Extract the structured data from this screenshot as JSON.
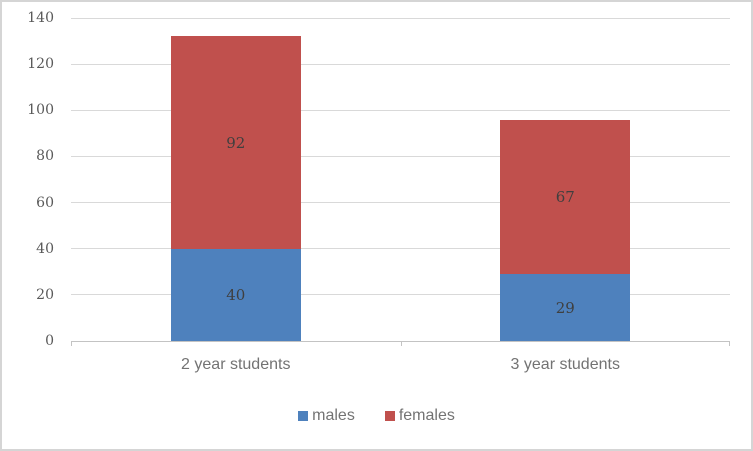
{
  "chart_data": {
    "type": "bar",
    "variant": "stacked-column",
    "title": "",
    "xlabel": "",
    "ylabel": "",
    "categories": [
      "2 year students",
      "3 year students"
    ],
    "series": [
      {
        "name": "males",
        "color": "#4e81bd",
        "values": [
          40,
          29
        ]
      },
      {
        "name": "females",
        "color": "#c0504d",
        "values": [
          92,
          67
        ]
      }
    ],
    "data_labels": [
      {
        "series": "males",
        "values": [
          "40",
          "29"
        ]
      },
      {
        "series": "females",
        "values": [
          "92",
          "67"
        ]
      }
    ],
    "ylim": [
      0,
      140
    ],
    "yticks": [
      0,
      20,
      40,
      60,
      80,
      100,
      120,
      140
    ],
    "grid": true,
    "legend_position": "bottom",
    "legend_entries": [
      "males",
      "females"
    ]
  },
  "colors": {
    "grid": "#d9d9d9",
    "axis": "#c3c3c3",
    "frame_border": "#d5d5d5",
    "ytick_text": "#595959",
    "data_label_text": "#3f3f3f",
    "category_text": "#737373",
    "background": "#ffffff"
  }
}
